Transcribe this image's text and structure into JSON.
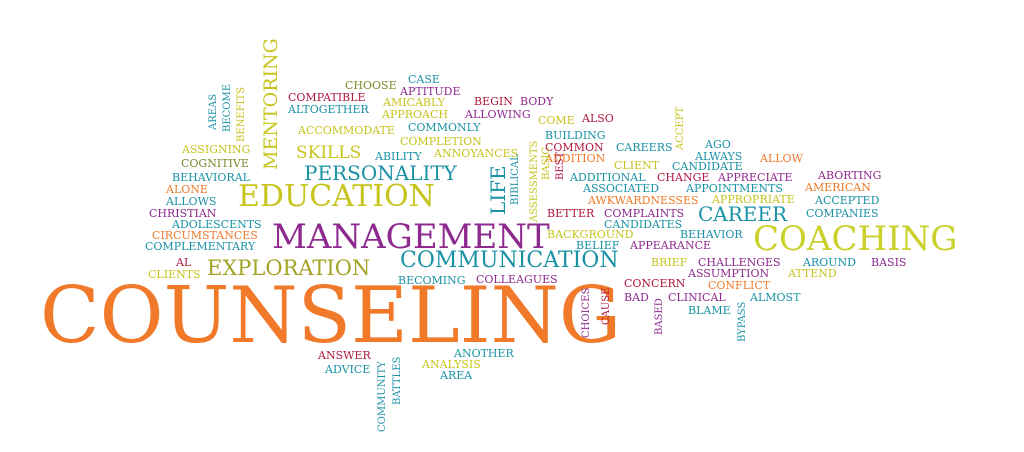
{
  "words": [
    {
      "text": "COUNSELING",
      "color": "#f07a2a",
      "size": 78
    },
    {
      "text": "MANAGEMENT",
      "color": "#8e2a8f",
      "size": 34
    },
    {
      "text": "COACHING",
      "color": "#c9d12a",
      "size": 34
    },
    {
      "text": "EDUCATION",
      "color": "#c7c41e",
      "size": 30
    },
    {
      "text": "COMMUNICATION",
      "color": "#1a92a5",
      "size": 22
    },
    {
      "text": "EXPLORATION",
      "color": "#a3a325",
      "size": 21
    },
    {
      "text": "PERSONALITY",
      "color": "#1a92a5",
      "size": 20
    },
    {
      "text": "CAREER",
      "color": "#1a92a5",
      "size": 20
    },
    {
      "text": "SKILLS",
      "color": "#c7c41e",
      "size": 17
    },
    {
      "text": "MENTORING",
      "color": "#c7c41e",
      "size": 19
    },
    {
      "text": "LIFE",
      "color": "#1a92a5",
      "size": 20
    },
    {
      "text": "CHOOSE",
      "color": "#7a8a2a",
      "size": 11
    },
    {
      "text": "CASE",
      "color": "#1a92a5",
      "size": 11
    },
    {
      "text": "COMPATIBLE",
      "color": "#b0173f",
      "size": 11
    },
    {
      "text": "APTITUDE",
      "color": "#8e2a8f",
      "size": 11
    },
    {
      "text": "AMICABLY",
      "color": "#c7c41e",
      "size": 11
    },
    {
      "text": "BEGIN",
      "color": "#b0173f",
      "size": 11
    },
    {
      "text": "BODY",
      "color": "#8e2a8f",
      "size": 11
    },
    {
      "text": "ALTOGETHER",
      "color": "#1a92a5",
      "size": 11
    },
    {
      "text": "APPROACH",
      "color": "#c7c41e",
      "size": 11
    },
    {
      "text": "ALLOWING",
      "color": "#8e2a8f",
      "size": 11
    },
    {
      "text": "COME",
      "color": "#c7c41e",
      "size": 11
    },
    {
      "text": "ALSO",
      "color": "#b0173f",
      "size": 11
    },
    {
      "text": "ACCOMMODATE",
      "color": "#c7c41e",
      "size": 11
    },
    {
      "text": "COMMONLY",
      "color": "#1a92a5",
      "size": 11
    },
    {
      "text": "COMPLETION",
      "color": "#c7c41e",
      "size": 11
    },
    {
      "text": "BUILDING",
      "color": "#1a92a5",
      "size": 11
    },
    {
      "text": "COMMON",
      "color": "#b0173f",
      "size": 11
    },
    {
      "text": "CAREERS",
      "color": "#1a92a5",
      "size": 11
    },
    {
      "text": "AGO",
      "color": "#1a92a5",
      "size": 11
    },
    {
      "text": "ABILITY",
      "color": "#1a92a5",
      "size": 11
    },
    {
      "text": "ANNOYANCES",
      "color": "#c7c41e",
      "size": 11
    },
    {
      "text": "ADDITION",
      "color": "#f07a2a",
      "size": 11
    },
    {
      "text": "ALWAYS",
      "color": "#1a92a5",
      "size": 11
    },
    {
      "text": "ALLOW",
      "color": "#f07a2a",
      "size": 11
    },
    {
      "text": "CLIENT",
      "color": "#c7c41e",
      "size": 11
    },
    {
      "text": "CANDIDATE",
      "color": "#1a92a5",
      "size": 11
    },
    {
      "text": "ASSIGNING",
      "color": "#c7c41e",
      "size": 11
    },
    {
      "text": "COGNITIVE",
      "color": "#7a8a2a",
      "size": 11
    },
    {
      "text": "BEHAVIORAL",
      "color": "#1a92a5",
      "size": 11
    },
    {
      "text": "ALONE",
      "color": "#f07a2a",
      "size": 11
    },
    {
      "text": "ALLOWS",
      "color": "#1a92a5",
      "size": 11
    },
    {
      "text": "CHRISTIAN",
      "color": "#8e2a8f",
      "size": 11
    },
    {
      "text": "ADOLESCENTS",
      "color": "#1a92a5",
      "size": 11
    },
    {
      "text": "CIRCUMSTANCES",
      "color": "#f07a2a",
      "size": 11
    },
    {
      "text": "COMPLEMENTARY",
      "color": "#1a92a5",
      "size": 11
    },
    {
      "text": "AL",
      "color": "#b0173f",
      "size": 11
    },
    {
      "text": "CLIENTS",
      "color": "#c7c41e",
      "size": 11
    },
    {
      "text": "ADDITIONAL",
      "color": "#1a92a5",
      "size": 11
    },
    {
      "text": "CHANGE",
      "color": "#b0173f",
      "size": 11
    },
    {
      "text": "APPRECIATE",
      "color": "#8e2a8f",
      "size": 11
    },
    {
      "text": "ABORTING",
      "color": "#8e2a8f",
      "size": 11
    },
    {
      "text": "ASSOCIATED",
      "color": "#1a92a5",
      "size": 11
    },
    {
      "text": "APPOINTMENTS",
      "color": "#1a92a5",
      "size": 11
    },
    {
      "text": "AMERICAN",
      "color": "#f07a2a",
      "size": 11
    },
    {
      "text": "AWKWARDNESSES",
      "color": "#f07a2a",
      "size": 11
    },
    {
      "text": "APPROPRIATE",
      "color": "#c7c41e",
      "size": 11
    },
    {
      "text": "ACCEPTED",
      "color": "#1a92a5",
      "size": 11
    },
    {
      "text": "BETTER",
      "color": "#b0173f",
      "size": 11
    },
    {
      "text": "COMPLAINTS",
      "color": "#8e2a8f",
      "size": 11
    },
    {
      "text": "COMPANIES",
      "color": "#1a92a5",
      "size": 11
    },
    {
      "text": "CANDIDATES",
      "color": "#1a92a5",
      "size": 11
    },
    {
      "text": "BACKGROUND",
      "color": "#c7c41e",
      "size": 11
    },
    {
      "text": "BEHAVIOR",
      "color": "#1a92a5",
      "size": 11
    },
    {
      "text": "BELIEF",
      "color": "#1a92a5",
      "size": 11
    },
    {
      "text": "APPEARANCE",
      "color": "#8e2a8f",
      "size": 11
    },
    {
      "text": "BRIEF",
      "color": "#c7c41e",
      "size": 11
    },
    {
      "text": "CHALLENGES",
      "color": "#8e2a8f",
      "size": 11
    },
    {
      "text": "AROUND",
      "color": "#1a92a5",
      "size": 11
    },
    {
      "text": "BASIS",
      "color": "#8e2a8f",
      "size": 11
    },
    {
      "text": "ASSUMPTION",
      "color": "#8e2a8f",
      "size": 11
    },
    {
      "text": "ATTEND",
      "color": "#c7c41e",
      "size": 11
    },
    {
      "text": "BECOMING",
      "color": "#1a92a5",
      "size": 11
    },
    {
      "text": "COLLEAGUES",
      "color": "#8e2a8f",
      "size": 11
    },
    {
      "text": "CONCERN",
      "color": "#b0173f",
      "size": 11
    },
    {
      "text": "CONFLICT",
      "color": "#f07a2a",
      "size": 11
    },
    {
      "text": "BAD",
      "color": "#8e2a8f",
      "size": 11
    },
    {
      "text": "CLINICAL",
      "color": "#8e2a8f",
      "size": 11
    },
    {
      "text": "ALMOST",
      "color": "#1a92a5",
      "size": 11
    },
    {
      "text": "BLAME",
      "color": "#1a92a5",
      "size": 11
    },
    {
      "text": "ANSWER",
      "color": "#b0173f",
      "size": 11
    },
    {
      "text": "ANOTHER",
      "color": "#1a92a5",
      "size": 11
    },
    {
      "text": "ADVICE",
      "color": "#1a92a5",
      "size": 11
    },
    {
      "text": "ANALYSIS",
      "color": "#c7c41e",
      "size": 11
    },
    {
      "text": "AREA",
      "color": "#1a92a5",
      "size": 11
    },
    {
      "text": "AREAS",
      "color": "#1a92a5",
      "size": 10
    },
    {
      "text": "BECOME",
      "color": "#1a92a5",
      "size": 10
    },
    {
      "text": "BENEFITS",
      "color": "#c7c41e",
      "size": 10
    },
    {
      "text": "ASSESSMENTS",
      "color": "#c7c41e",
      "size": 10
    },
    {
      "text": "BIBLICAL",
      "color": "#1a92a5",
      "size": 10
    },
    {
      "text": "BASIC",
      "color": "#c7c41e",
      "size": 10
    },
    {
      "text": "BEST",
      "color": "#b0173f",
      "size": 10
    },
    {
      "text": "ACCEPT",
      "color": "#c7c41e",
      "size": 10
    },
    {
      "text": "CHOICES",
      "color": "#8e2a8f",
      "size": 10
    },
    {
      "text": "CAUSE",
      "color": "#b0173f",
      "size": 10
    },
    {
      "text": "BASED",
      "color": "#8e2a8f",
      "size": 10
    },
    {
      "text": "BYPASS",
      "color": "#1a92a5",
      "size": 10
    },
    {
      "text": "COMMUNITY",
      "color": "#1a92a5",
      "size": 10
    },
    {
      "text": "BATTLES",
      "color": "#1a92a5",
      "size": 10
    }
  ]
}
